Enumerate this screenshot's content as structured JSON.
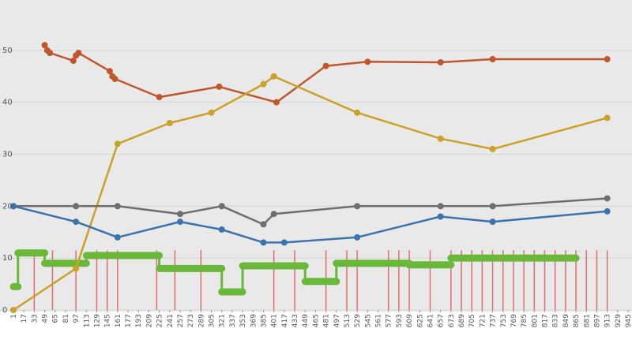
{
  "chart_data": {
    "type": "line",
    "title": "",
    "xlabel": "",
    "ylabel": "",
    "grid": true,
    "background": "#e9e9e9",
    "ylim": [
      0,
      60
    ],
    "yticks": [
      0,
      10,
      20,
      30,
      40,
      50
    ],
    "xticks": [
      "1",
      "17",
      "33",
      "49",
      "65",
      "81",
      "97",
      "113",
      "129",
      "145",
      "161",
      "177",
      "193",
      "209",
      "225",
      "241",
      "257",
      "273",
      "289",
      "305",
      "321",
      "337",
      "353",
      "369",
      "385",
      "401",
      "417",
      "433",
      "449",
      "465",
      "481",
      "497",
      "513",
      "529",
      "545",
      "561",
      "577",
      "593",
      "609",
      "625",
      "641",
      "657",
      "673",
      "689",
      "705",
      "721",
      "737",
      "753",
      "769",
      "785",
      "801",
      "817",
      "833",
      "849",
      "865",
      "881",
      "897",
      "913",
      "929",
      "945"
    ],
    "xlim": [
      1,
      945
    ],
    "series": [
      {
        "color": "#c0562a",
        "points": [
          [
            49,
            51
          ],
          [
            53,
            50
          ],
          [
            57,
            49.5
          ],
          [
            93,
            48
          ],
          [
            97,
            49
          ],
          [
            101,
            49.5
          ],
          [
            149,
            46
          ],
          [
            153,
            45
          ],
          [
            157,
            44.5
          ],
          [
            225,
            41
          ],
          [
            317,
            43
          ],
          [
            405,
            40
          ],
          [
            481,
            47
          ],
          [
            545,
            47.8
          ],
          [
            657,
            47.7
          ],
          [
            737,
            48.3
          ],
          [
            913,
            48.3
          ]
        ]
      },
      {
        "color": "#c9a227",
        "points": [
          [
            1,
            0
          ],
          [
            97,
            8
          ],
          [
            161,
            32
          ],
          [
            241,
            36
          ],
          [
            305,
            38
          ],
          [
            385,
            43.5
          ],
          [
            401,
            45
          ],
          [
            529,
            38
          ],
          [
            657,
            33
          ],
          [
            737,
            31
          ],
          [
            913,
            37
          ]
        ]
      },
      {
        "color": "#6e6e6e",
        "points": [
          [
            1,
            20
          ],
          [
            97,
            20
          ],
          [
            161,
            20
          ],
          [
            257,
            18.5
          ],
          [
            321,
            20
          ],
          [
            385,
            16.5
          ],
          [
            401,
            18.5
          ],
          [
            529,
            20
          ],
          [
            657,
            20
          ],
          [
            737,
            20
          ],
          [
            913,
            21.5
          ]
        ]
      },
      {
        "color": "#3a73ad",
        "points": [
          [
            1,
            20
          ],
          [
            97,
            17
          ],
          [
            161,
            14
          ],
          [
            257,
            17
          ],
          [
            321,
            15.5
          ],
          [
            385,
            13
          ],
          [
            417,
            13
          ],
          [
            529,
            14
          ],
          [
            657,
            18
          ],
          [
            737,
            17
          ],
          [
            913,
            19
          ]
        ]
      }
    ],
    "step_series": {
      "color": "#6ab83a",
      "steps": [
        [
          1,
          8,
          4.5
        ],
        [
          8,
          49,
          11
        ],
        [
          49,
          113,
          9
        ],
        [
          113,
          225,
          10.5
        ],
        [
          225,
          289,
          8
        ],
        [
          289,
          321,
          8
        ],
        [
          321,
          353,
          3.5
        ],
        [
          353,
          449,
          8.5
        ],
        [
          449,
          497,
          5.5
        ],
        [
          497,
          609,
          9
        ],
        [
          609,
          673,
          8.7
        ],
        [
          673,
          865,
          10
        ]
      ]
    },
    "red_bars": {
      "color": "#e36b6b",
      "x": [
        33,
        61,
        97,
        129,
        145,
        161,
        221,
        249,
        289,
        401,
        433,
        481,
        513,
        529,
        577,
        593,
        609,
        641,
        673,
        689,
        705,
        721,
        737,
        753,
        769,
        785,
        801,
        817,
        833,
        849,
        865,
        881,
        897,
        913
      ]
    }
  }
}
